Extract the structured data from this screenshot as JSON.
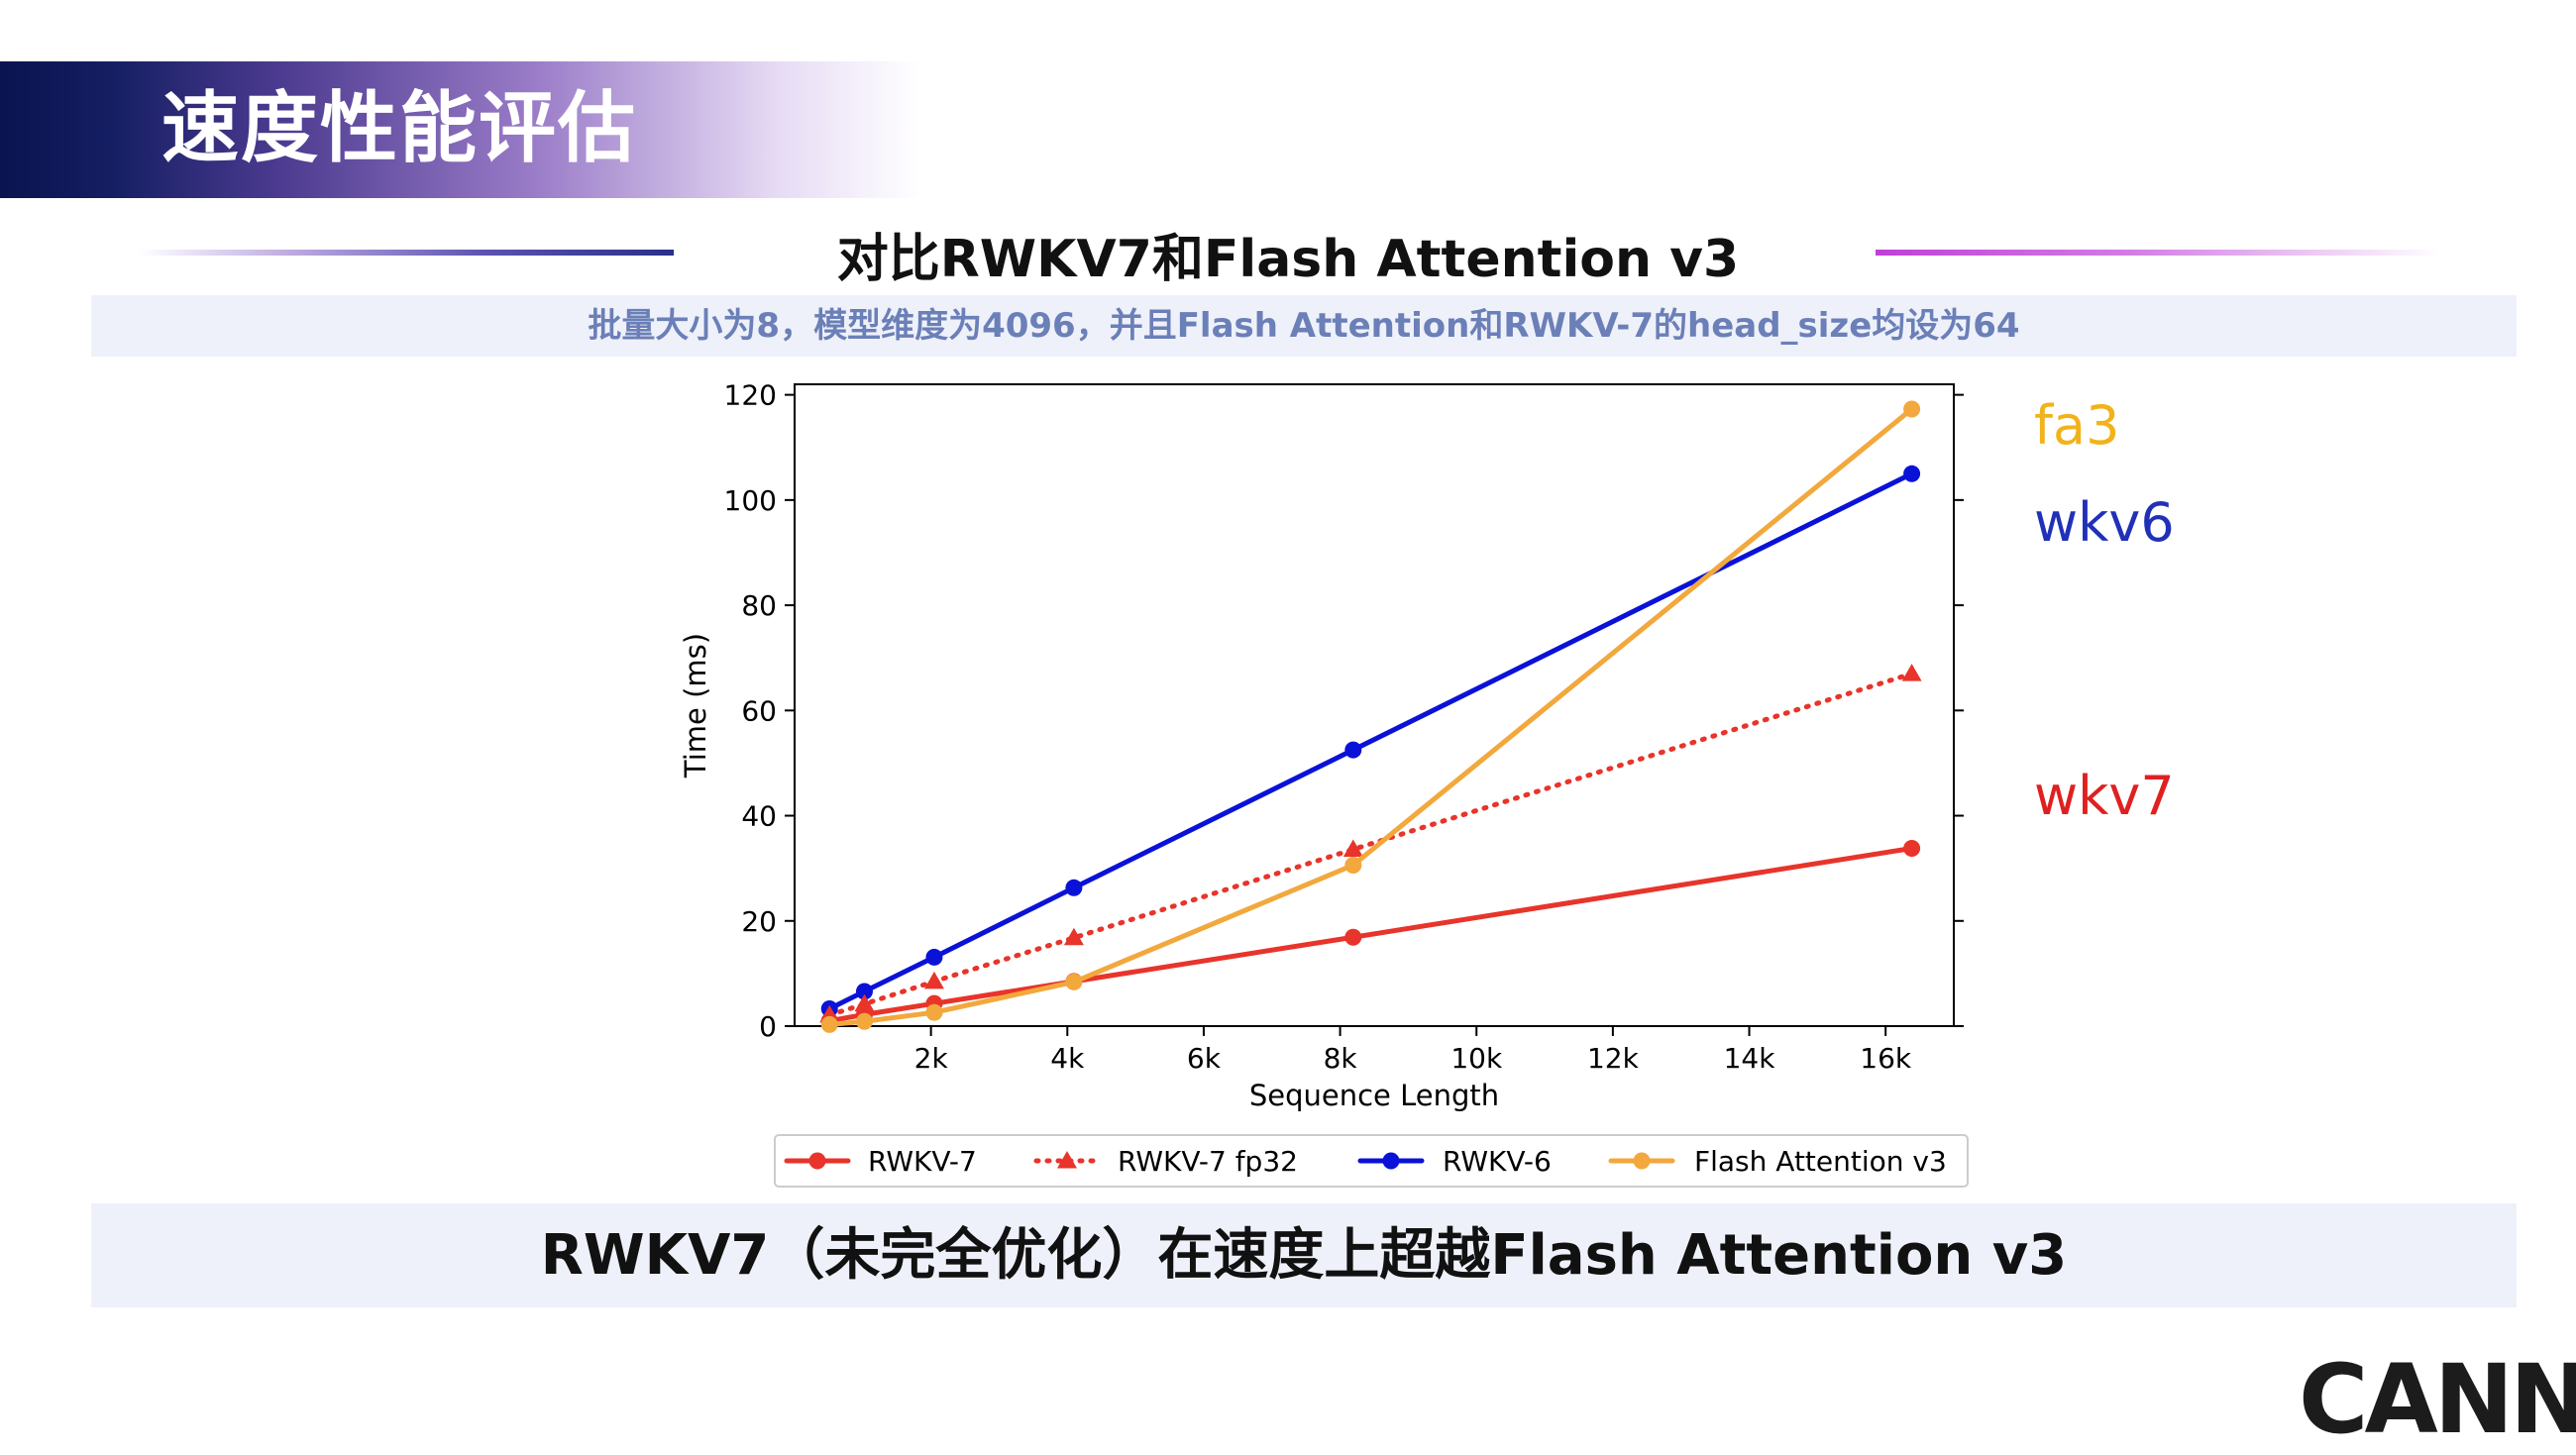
{
  "slide": {
    "title": "速度性能评估",
    "chart_heading": "对比RWKV7和Flash Attention v3",
    "subtitle": "批量大小为8，模型维度为4096，并且Flash Attention和RWKV-7的head_size均设为64",
    "conclusion": "RWKV7（未完全优化）在速度上超越Flash Attention v3",
    "logo": "CANN"
  },
  "annotations": [
    {
      "text": "fa3",
      "color": "#f2b21a"
    },
    {
      "text": "wkv6",
      "color": "#2030b8"
    },
    {
      "text": "wkv7",
      "color": "#e02020"
    }
  ],
  "chart_data": {
    "type": "line",
    "title": "",
    "xlabel": "Sequence Length",
    "ylabel": "Time (ms)",
    "xlim": [
      0,
      17000
    ],
    "ylim": [
      0,
      122
    ],
    "xticks": [
      2000,
      4000,
      6000,
      8000,
      10000,
      12000,
      14000,
      16000
    ],
    "xtick_labels": [
      "2k",
      "4k",
      "6k",
      "8k",
      "10k",
      "12k",
      "14k",
      "16k"
    ],
    "yticks": [
      0,
      20,
      40,
      60,
      80,
      100,
      120
    ],
    "ytick_labels": [
      "0",
      "20",
      "40",
      "60",
      "80",
      "100",
      "120"
    ],
    "grid": false,
    "legend_placement": "bottom",
    "x": [
      512,
      1024,
      2048,
      4096,
      8192,
      16384
    ],
    "series": [
      {
        "name": "RWKV-7",
        "values": [
          1.0,
          2.2,
          4.3,
          8.5,
          16.9,
          33.8
        ],
        "color": "#e8342a",
        "marker": "circle",
        "style": "solid"
      },
      {
        "name": "RWKV-7 fp32",
        "values": [
          2.1,
          4.2,
          8.5,
          16.8,
          33.6,
          67.0
        ],
        "color": "#e8342a",
        "marker": "triangle",
        "style": "dotted"
      },
      {
        "name": "RWKV-6",
        "values": [
          3.3,
          6.6,
          13.1,
          26.3,
          52.5,
          105.0
        ],
        "color": "#0a12d8",
        "marker": "circle",
        "style": "solid"
      },
      {
        "name": "Flash Attention v3",
        "values": [
          0.3,
          0.9,
          2.6,
          8.4,
          30.6,
          117.3
        ],
        "color": "#f2a83c",
        "marker": "circle",
        "style": "solid"
      }
    ]
  }
}
